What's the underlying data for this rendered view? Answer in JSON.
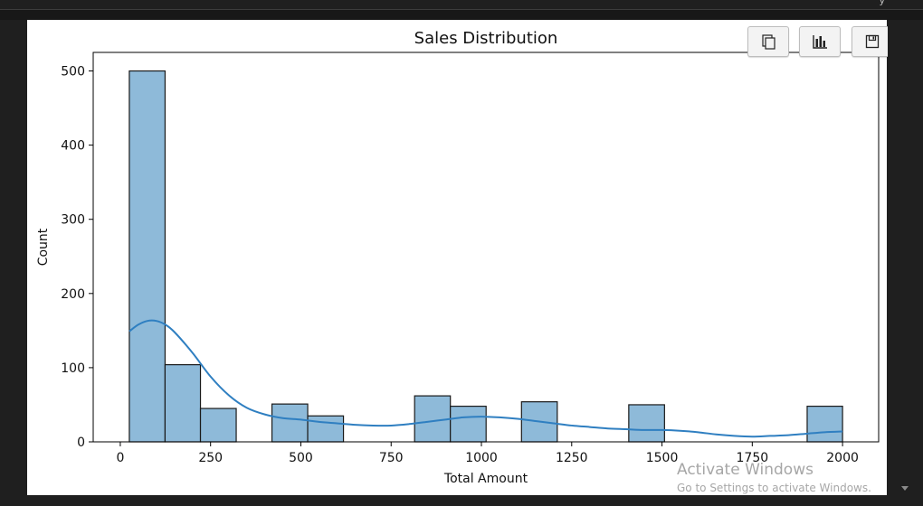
{
  "window": {
    "top_fragment": "y"
  },
  "toolbar": {
    "buttons": [
      {
        "name": "copy-output-button",
        "icon": "copy-icon"
      },
      {
        "name": "chart-view-button",
        "icon": "bar-chart-icon"
      },
      {
        "name": "save-output-button",
        "icon": "save-icon"
      }
    ]
  },
  "watermark": {
    "line1": "Activate Windows",
    "line2": "Go to Settings to activate Windows."
  },
  "chart_data": {
    "type": "bar",
    "title": "Sales Distribution",
    "xlabel": "Total Amount",
    "ylabel": "Count",
    "xlim": [
      -75,
      2100
    ],
    "ylim": [
      0,
      525
    ],
    "xticks": [
      0,
      250,
      500,
      750,
      1000,
      1250,
      1500,
      1750,
      2000
    ],
    "yticks": [
      0,
      100,
      200,
      300,
      400,
      500
    ],
    "bins": [
      {
        "x0": 25,
        "x1": 124,
        "count": 500
      },
      {
        "x0": 124,
        "x1": 222,
        "count": 104
      },
      {
        "x0": 222,
        "x1": 321,
        "count": 45
      },
      {
        "x0": 321,
        "x1": 420,
        "count": 0
      },
      {
        "x0": 420,
        "x1": 519,
        "count": 51
      },
      {
        "x0": 519,
        "x1": 618,
        "count": 35
      },
      {
        "x0": 618,
        "x1": 716,
        "count": 0
      },
      {
        "x0": 716,
        "x1": 815,
        "count": 0
      },
      {
        "x0": 815,
        "x1": 914,
        "count": 62
      },
      {
        "x0": 914,
        "x1": 1013,
        "count": 48
      },
      {
        "x0": 1013,
        "x1": 1111,
        "count": 0
      },
      {
        "x0": 1111,
        "x1": 1210,
        "count": 54
      },
      {
        "x0": 1210,
        "x1": 1309,
        "count": 0
      },
      {
        "x0": 1309,
        "x1": 1408,
        "count": 0
      },
      {
        "x0": 1408,
        "x1": 1507,
        "count": 50
      },
      {
        "x0": 1507,
        "x1": 1605,
        "count": 0
      },
      {
        "x0": 1605,
        "x1": 1704,
        "count": 0
      },
      {
        "x0": 1704,
        "x1": 1803,
        "count": 0
      },
      {
        "x0": 1803,
        "x1": 1902,
        "count": 0
      },
      {
        "x0": 1902,
        "x1": 2000,
        "count": 48
      }
    ],
    "kde": {
      "x": [
        25,
        50,
        75,
        100,
        125,
        150,
        200,
        250,
        300,
        350,
        400,
        450,
        500,
        550,
        600,
        650,
        700,
        750,
        800,
        850,
        900,
        950,
        1000,
        1050,
        1100,
        1150,
        1200,
        1250,
        1300,
        1350,
        1400,
        1450,
        1500,
        1550,
        1600,
        1650,
        1700,
        1750,
        1800,
        1850,
        1900,
        1950,
        2000
      ],
      "y": [
        149,
        158,
        163,
        163,
        158,
        148,
        120,
        88,
        63,
        46,
        37,
        32,
        30,
        27,
        25,
        23,
        22,
        22,
        24,
        27,
        30,
        33,
        34,
        33,
        31,
        28,
        25,
        22,
        20,
        18,
        17,
        16,
        16,
        15,
        13,
        10,
        8,
        7,
        8,
        9,
        11,
        13,
        14
      ]
    },
    "bar_color": "#8ebad9",
    "bar_edge_color": "#1a1a1a",
    "kde_color": "#2f7fc1",
    "grid": false,
    "legend": "none"
  }
}
